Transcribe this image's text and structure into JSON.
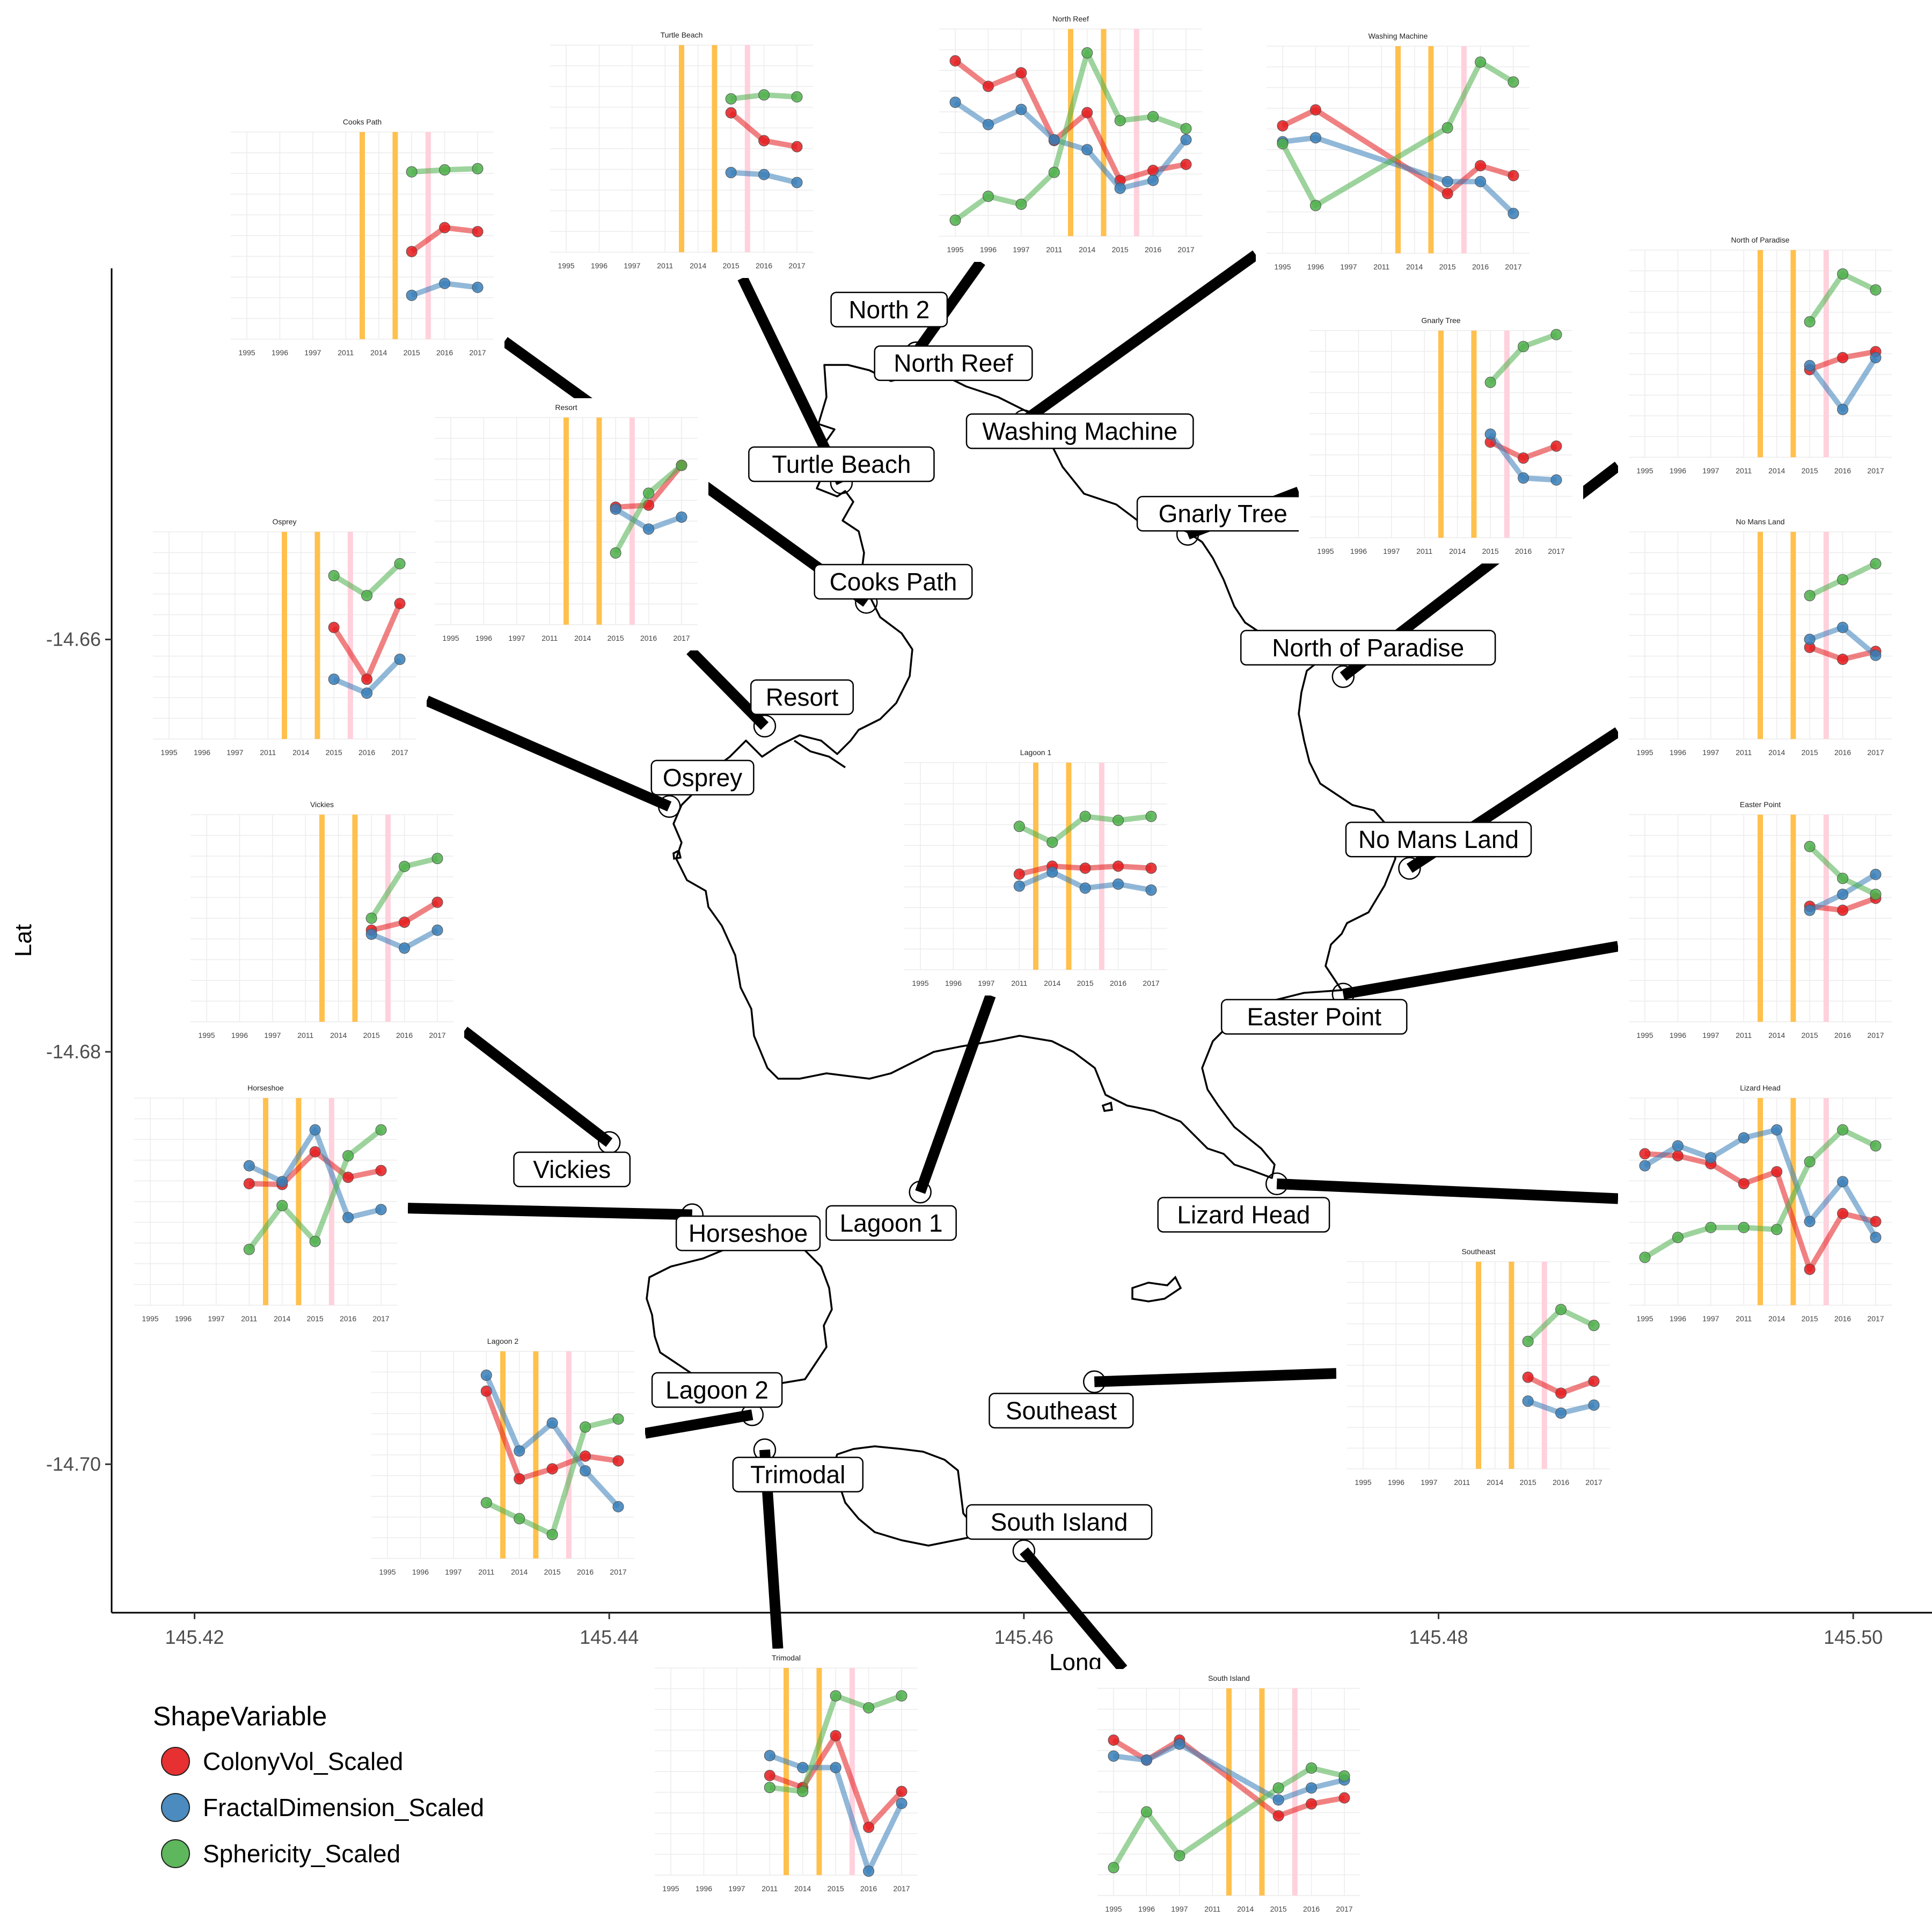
{
  "chart_data": {
    "type": "map-with-inset-line-charts",
    "map": {
      "xlabel": "Long",
      "ylabel": "Lat",
      "x_ticks": [
        145.42,
        145.44,
        145.46,
        145.48,
        145.5
      ],
      "x_tick_labels": [
        "145.42",
        "145.44",
        "145.46",
        "145.48",
        "145.50"
      ],
      "y_ticks": [
        -14.66,
        -14.68,
        -14.7
      ],
      "y_tick_labels": [
        "-14.66",
        "-14.68",
        "-14.70"
      ],
      "xlim": [
        145.416,
        145.5038
      ],
      "ylim": [
        -14.7072,
        -14.642
      ],
      "grid": false
    },
    "legend": {
      "title": "ShapeVariable",
      "position": "bottom-left",
      "entries": [
        {
          "key": "col",
          "label": "ColonyVol_Scaled",
          "color": "#E41A1C"
        },
        {
          "key": "frac",
          "label": "FractalDimension_Scaled",
          "color": "#377EB8"
        },
        {
          "key": "sph",
          "label": "Sphericity_Scaled",
          "color": "#4DAF4A"
        }
      ]
    },
    "inset_x_labels": [
      "1995",
      "1996",
      "1997",
      "2011",
      "2014",
      "2015",
      "2016",
      "2017"
    ],
    "inset_event_lines": [
      {
        "between": [
          3,
          4
        ],
        "color": "#FFC04D"
      },
      {
        "between": [
          4,
          5
        ],
        "color": "#FFC04D"
      },
      {
        "between": [
          5,
          6
        ],
        "color": "#FFD1DC"
      }
    ],
    "sites": [
      {
        "name": "North 2",
        "lon": 145.4548,
        "lat": -14.6461,
        "label_lon": 145.4535,
        "label_lat": -14.644,
        "inset": null
      },
      {
        "name": "North Reef",
        "lon": 145.4548,
        "lat": -14.6461,
        "label_lon": 145.4566,
        "label_lat": -14.6466,
        "inset": {
          "title": "North Reef",
          "col": [
            1.8,
            1.16,
            1.5,
            -0.2,
            0.5,
            -1.2,
            -0.95,
            -0.8
          ],
          "frac": [
            0.76,
            0.2,
            0.58,
            -0.18,
            -0.43,
            -1.4,
            -1.2,
            -0.18
          ],
          "sph": [
            -2.2,
            -1.6,
            -1.8,
            -1.0,
            2.0,
            0.3,
            0.4,
            0.1
          ]
        }
      },
      {
        "name": "Washing Machine",
        "lon": 145.46,
        "lat": -14.6494,
        "label_lon": 145.4627,
        "label_lat": -14.6499,
        "inset": {
          "title": "Washing Machine",
          "col": [
            0.6,
            1.0,
            null,
            null,
            null,
            -1.1,
            -0.4,
            -0.65
          ],
          "frac": [
            0.2,
            0.3,
            null,
            null,
            null,
            -0.8,
            -0.8,
            -1.6
          ],
          "sph": [
            0.15,
            -1.4,
            null,
            null,
            null,
            0.55,
            2.2,
            1.7
          ]
        }
      },
      {
        "name": "Turtle Beach",
        "lon": 145.4512,
        "lat": -14.6524,
        "label_lon": 145.4512,
        "label_lat": -14.6515,
        "inset": {
          "title": "Turtle Beach",
          "col": [
            null,
            null,
            null,
            null,
            null,
            0.9,
            0.2,
            0.05
          ],
          "frac": [
            null,
            null,
            null,
            null,
            null,
            -0.6,
            -0.65,
            -0.85
          ],
          "sph": [
            null,
            null,
            null,
            null,
            null,
            1.25,
            1.35,
            1.3
          ]
        }
      },
      {
        "name": "Gnarly Tree",
        "lon": 145.4679,
        "lat": -14.6549,
        "label_lon": 145.4696,
        "label_lat": -14.6539,
        "inset": {
          "title": "Gnarly Tree",
          "col": [
            null,
            null,
            null,
            null,
            null,
            -0.2,
            -0.6,
            -0.3
          ],
          "frac": [
            null,
            null,
            null,
            null,
            null,
            0.0,
            -1.1,
            -1.15
          ],
          "sph": [
            null,
            null,
            null,
            null,
            null,
            1.3,
            2.2,
            2.5
          ]
        }
      },
      {
        "name": "Cooks Path",
        "lon": 145.4524,
        "lat": -14.6582,
        "label_lon": 145.4537,
        "label_lat": -14.6572,
        "inset": {
          "title": "Cooks Path",
          "col": [
            null,
            null,
            null,
            null,
            null,
            -0.4,
            0.2,
            0.1
          ],
          "frac": [
            null,
            null,
            null,
            null,
            null,
            -1.5,
            -1.2,
            -1.3
          ],
          "sph": [
            null,
            null,
            null,
            null,
            null,
            1.6,
            1.65,
            1.68
          ]
        }
      },
      {
        "name": "North of Paradise",
        "lon": 145.4754,
        "lat": -14.6618,
        "label_lon": 145.4766,
        "label_lat": -14.6604,
        "inset": {
          "title": "North of Paradise",
          "col": [
            null,
            null,
            null,
            null,
            null,
            -0.4,
            -0.1,
            0.05
          ],
          "frac": [
            null,
            null,
            null,
            null,
            null,
            -0.3,
            -1.4,
            -0.1
          ],
          "sph": [
            null,
            null,
            null,
            null,
            null,
            0.8,
            2.0,
            1.6
          ]
        }
      },
      {
        "name": "Resort",
        "lon": 145.4475,
        "lat": -14.6642,
        "label_lon": 145.4493,
        "label_lat": -14.6628,
        "inset": {
          "title": "Resort",
          "col": [
            null,
            null,
            null,
            null,
            null,
            0.35,
            0.4,
            1.4
          ],
          "frac": [
            null,
            null,
            null,
            null,
            null,
            0.3,
            -0.2,
            0.1
          ],
          "sph": [
            null,
            null,
            null,
            null,
            null,
            -0.8,
            0.7,
            1.4
          ]
        }
      },
      {
        "name": "Osprey",
        "lon": 145.4429,
        "lat": -14.6681,
        "label_lon": 145.4445,
        "label_lat": -14.6667,
        "inset": {
          "title": "Osprey",
          "col": [
            null,
            null,
            null,
            null,
            null,
            0.2,
            -1.1,
            0.8
          ],
          "frac": [
            null,
            null,
            null,
            null,
            null,
            -1.1,
            -1.45,
            -0.6
          ],
          "sph": [
            null,
            null,
            null,
            null,
            null,
            1.5,
            1.0,
            1.8
          ]
        }
      },
      {
        "name": "No Mans Land",
        "lon": 145.4786,
        "lat": -14.6711,
        "label_lon": 145.48,
        "label_lat": -14.6697,
        "inset": {
          "title": "No Mans Land",
          "col": [
            null,
            null,
            null,
            null,
            null,
            -0.3,
            -0.6,
            -0.4
          ],
          "frac": [
            null,
            null,
            null,
            null,
            null,
            -0.1,
            0.2,
            -0.5
          ],
          "sph": [
            null,
            null,
            null,
            null,
            null,
            1.0,
            1.4,
            1.8
          ]
        }
      },
      {
        "name": "Easter Point",
        "lon": 145.4754,
        "lat": -14.6772,
        "label_lon": 145.474,
        "label_lat": -14.6783,
        "inset": {
          "title": "Easter Point",
          "col": [
            null,
            null,
            null,
            null,
            null,
            0.3,
            0.2,
            0.5
          ],
          "frac": [
            null,
            null,
            null,
            null,
            null,
            0.2,
            0.6,
            1.1
          ],
          "sph": [
            null,
            null,
            null,
            null,
            null,
            1.8,
            1.0,
            0.6
          ]
        }
      },
      {
        "name": "Vickies",
        "lon": 145.44,
        "lat": -14.6844,
        "label_lon": 145.4382,
        "label_lat": -14.6857,
        "inset": {
          "title": "Vickies",
          "col": [
            null,
            null,
            null,
            null,
            null,
            -0.3,
            -0.1,
            0.4
          ],
          "frac": [
            null,
            null,
            null,
            null,
            null,
            -0.4,
            -0.75,
            -0.3
          ],
          "sph": [
            null,
            null,
            null,
            null,
            null,
            0.0,
            1.3,
            1.5
          ]
        }
      },
      {
        "name": "Lagoon 1",
        "lon": 145.455,
        "lat": -14.6868,
        "label_lon": 145.4536,
        "label_lat": -14.6883,
        "inset": {
          "title": "Lagoon 1",
          "col": [
            null,
            null,
            null,
            -0.2,
            0.0,
            -0.05,
            0.0,
            -0.05
          ],
          "frac": [
            null,
            null,
            null,
            -0.5,
            -0.15,
            -0.55,
            -0.45,
            -0.6
          ],
          "sph": [
            null,
            null,
            null,
            1.0,
            0.6,
            1.25,
            1.15,
            1.25
          ]
        }
      },
      {
        "name": "Lizard Head",
        "lon": 145.4722,
        "lat": -14.6864,
        "label_lon": 145.4706,
        "label_lat": -14.6879,
        "inset": {
          "title": "Lizard Head",
          "col": [
            1.2,
            1.15,
            0.95,
            0.45,
            0.75,
            -1.7,
            -0.3,
            -0.5
          ],
          "frac": [
            0.9,
            1.4,
            1.1,
            1.6,
            1.8,
            -0.5,
            0.5,
            -0.9
          ],
          "sph": [
            -1.4,
            -0.9,
            -0.65,
            -0.65,
            -0.7,
            1.0,
            1.8,
            1.4
          ]
        }
      },
      {
        "name": "Horseshoe",
        "lon": 145.444,
        "lat": -14.6879,
        "label_lon": 145.4467,
        "label_lat": -14.6888,
        "inset": {
          "title": "Horseshoe",
          "col": [
            null,
            null,
            null,
            0.45,
            0.43,
            1.25,
            0.61,
            0.78
          ],
          "frac": [
            null,
            null,
            null,
            0.9,
            0.5,
            1.8,
            -0.4,
            -0.2
          ],
          "sph": [
            null,
            null,
            null,
            -1.2,
            -0.1,
            -1.0,
            1.15,
            1.8
          ]
        }
      },
      {
        "name": "Southeast",
        "lon": 145.4634,
        "lat": -14.696,
        "label_lon": 145.4618,
        "label_lat": -14.6974,
        "inset": {
          "title": "Southeast",
          "col": [
            null,
            null,
            null,
            null,
            null,
            -0.3,
            -0.7,
            -0.4
          ],
          "frac": [
            null,
            null,
            null,
            null,
            null,
            -0.9,
            -1.2,
            -1.0
          ],
          "sph": [
            null,
            null,
            null,
            null,
            null,
            0.6,
            1.4,
            1.0
          ]
        }
      },
      {
        "name": "Lagoon 2",
        "lon": 145.4469,
        "lat": -14.6976,
        "label_lon": 145.4452,
        "label_lat": -14.6964,
        "inset": {
          "title": "Lagoon 2",
          "col": [
            null,
            null,
            null,
            1.6,
            -0.6,
            -0.35,
            -0.03,
            -0.15
          ],
          "frac": [
            null,
            null,
            null,
            2.0,
            0.1,
            0.8,
            -0.4,
            -1.3
          ],
          "sph": [
            null,
            null,
            null,
            -1.2,
            -1.6,
            -2.0,
            0.7,
            0.9
          ]
        }
      },
      {
        "name": "Trimodal",
        "lon": 145.4475,
        "lat": -14.6993,
        "label_lon": 145.4491,
        "label_lat": -14.7005,
        "inset": {
          "title": "Trimodal",
          "col": [
            null,
            null,
            null,
            -0.1,
            -0.4,
            0.9,
            -1.4,
            -0.5
          ],
          "frac": [
            null,
            null,
            null,
            0.4,
            0.1,
            0.1,
            -2.5,
            -0.8
          ],
          "sph": [
            null,
            null,
            null,
            -0.4,
            -0.5,
            1.9,
            1.6,
            1.9
          ]
        }
      },
      {
        "name": "South Island",
        "lon": 145.46,
        "lat": -14.7042,
        "label_lon": 145.4617,
        "label_lat": -14.7028,
        "inset": {
          "title": "South Island",
          "col": [
            1.3,
            0.8,
            1.3,
            null,
            null,
            -0.6,
            -0.3,
            -0.15
          ],
          "frac": [
            0.9,
            0.8,
            1.2,
            null,
            null,
            -0.2,
            0.1,
            0.3
          ],
          "sph": [
            -1.9,
            -0.5,
            -1.6,
            null,
            null,
            0.1,
            0.6,
            0.4
          ]
        }
      }
    ]
  }
}
